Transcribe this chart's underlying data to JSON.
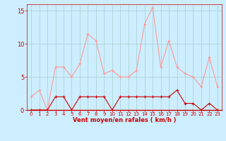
{
  "x": [
    0,
    1,
    2,
    3,
    4,
    5,
    6,
    7,
    8,
    9,
    10,
    11,
    12,
    13,
    14,
    15,
    16,
    17,
    18,
    19,
    20,
    21,
    22,
    23
  ],
  "wind_avg": [
    0,
    0,
    0,
    2,
    2,
    0,
    2,
    2,
    2,
    2,
    0,
    2,
    2,
    2,
    2,
    2,
    2,
    2,
    3,
    1,
    1,
    0,
    1,
    0
  ],
  "wind_gust": [
    2,
    3,
    0,
    6.5,
    6.5,
    5,
    7,
    11.5,
    10.5,
    5.5,
    6,
    5,
    5,
    6,
    13,
    15.5,
    6.5,
    10.5,
    6.5,
    5.5,
    5,
    3.5,
    8,
    3.5
  ],
  "avg_color": "#cc0000",
  "gust_color": "#ff9999",
  "bg_color": "#cceeff",
  "grid_color": "#aacccc",
  "xlabel": "Vent moyen/en rafales ( km/h )",
  "xlim_min": -0.5,
  "xlim_max": 23.5,
  "ylim": [
    0,
    16
  ],
  "yticks": [
    0,
    5,
    10,
    15
  ],
  "xticks": [
    0,
    1,
    2,
    3,
    4,
    5,
    6,
    7,
    8,
    9,
    10,
    11,
    12,
    13,
    14,
    15,
    16,
    17,
    18,
    19,
    20,
    21,
    22,
    23
  ],
  "tick_color": "#cc0000",
  "label_color": "#cc0000",
  "xlabel_fontsize": 6,
  "tick_fontsize": 5,
  "ytick_fontsize": 6
}
